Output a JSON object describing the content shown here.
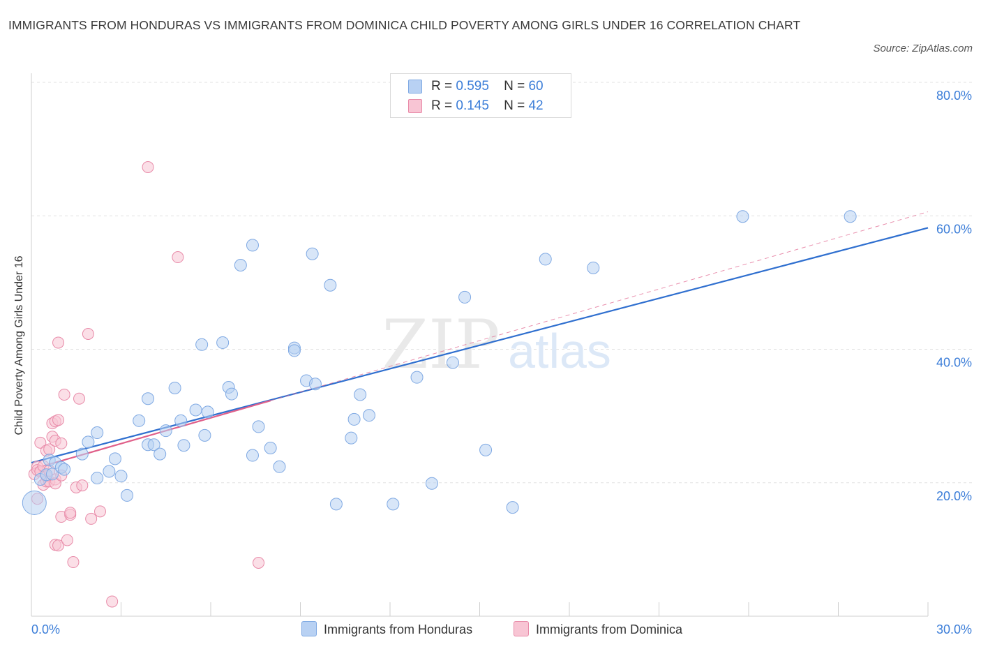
{
  "title": "IMMIGRANTS FROM HONDURAS VS IMMIGRANTS FROM DOMINICA CHILD POVERTY AMONG GIRLS UNDER 16 CORRELATION CHART",
  "source": "Source: ZipAtlas.com",
  "watermark": {
    "zip": "ZIP",
    "atlas": "atlas"
  },
  "legend": {
    "r_label": "R =",
    "n_label": "N =",
    "entries": [
      {
        "r": "0.595",
        "n": "60"
      },
      {
        "r": "0.145",
        "n": "42"
      }
    ]
  },
  "colors": {
    "honduras_fill": "#b8d1f3",
    "honduras_stroke": "#7fa9e3",
    "honduras_line": "#2f6fcf",
    "dominica_fill": "#f8c5d4",
    "dominica_stroke": "#e88aa8",
    "dominica_line": "#e0608a",
    "tick_text": "#3b7dd8",
    "grid": "#e2e2e2"
  },
  "chart_data": {
    "type": "scatter",
    "title": "IMMIGRANTS FROM HONDURAS VS IMMIGRANTS FROM DOMINICA CHILD POVERTY AMONG GIRLS UNDER 16 CORRELATION CHART",
    "xlabel": "",
    "ylabel": "Child Poverty Among Girls Under 16",
    "xlim": [
      0,
      30
    ],
    "ylim": [
      0,
      80
    ],
    "x_tick_labels": [
      "0.0%",
      "30.0%"
    ],
    "y_ticks": [
      20,
      40,
      60,
      80
    ],
    "y_tick_labels": [
      "20.0%",
      "40.0%",
      "60.0%",
      "80.0%"
    ],
    "series": [
      {
        "name": "Immigrants from Honduras",
        "points": [
          [
            0.1,
            17.0
          ],
          [
            0.3,
            20.5
          ],
          [
            0.5,
            21.2
          ],
          [
            0.6,
            23.4
          ],
          [
            0.7,
            21.3
          ],
          [
            0.8,
            23.0
          ],
          [
            1.0,
            22.3
          ],
          [
            1.1,
            22.0
          ],
          [
            1.7,
            24.3
          ],
          [
            1.9,
            26.1
          ],
          [
            2.2,
            27.5
          ],
          [
            2.2,
            20.7
          ],
          [
            2.6,
            21.7
          ],
          [
            2.8,
            23.6
          ],
          [
            3.0,
            21.0
          ],
          [
            3.2,
            18.1
          ],
          [
            3.6,
            29.3
          ],
          [
            3.9,
            25.7
          ],
          [
            3.9,
            32.6
          ],
          [
            4.1,
            25.7
          ],
          [
            4.3,
            24.3
          ],
          [
            4.5,
            27.8
          ],
          [
            4.8,
            34.2
          ],
          [
            5.0,
            29.3
          ],
          [
            5.1,
            25.6
          ],
          [
            5.5,
            30.9
          ],
          [
            5.7,
            40.7
          ],
          [
            5.8,
            27.1
          ],
          [
            5.9,
            30.6
          ],
          [
            6.4,
            41.0
          ],
          [
            6.6,
            34.3
          ],
          [
            6.7,
            33.3
          ],
          [
            7.0,
            52.6
          ],
          [
            7.4,
            55.6
          ],
          [
            7.4,
            24.1
          ],
          [
            7.6,
            28.4
          ],
          [
            8.0,
            25.2
          ],
          [
            8.3,
            22.4
          ],
          [
            8.8,
            40.2
          ],
          [
            8.8,
            39.8
          ],
          [
            9.2,
            35.3
          ],
          [
            9.4,
            54.3
          ],
          [
            9.5,
            34.8
          ],
          [
            10.0,
            49.6
          ],
          [
            10.2,
            16.8
          ],
          [
            10.7,
            26.7
          ],
          [
            10.8,
            29.5
          ],
          [
            11.0,
            33.2
          ],
          [
            11.3,
            30.1
          ],
          [
            12.1,
            16.8
          ],
          [
            12.9,
            35.8
          ],
          [
            13.4,
            19.9
          ],
          [
            14.1,
            38.0
          ],
          [
            14.5,
            47.8
          ],
          [
            15.2,
            24.9
          ],
          [
            16.1,
            16.3
          ],
          [
            17.2,
            53.5
          ],
          [
            18.8,
            52.2
          ],
          [
            23.8,
            59.9
          ],
          [
            27.4,
            59.9
          ]
        ]
      },
      {
        "name": "Immigrants from Dominica",
        "points": [
          [
            0.1,
            21.3
          ],
          [
            0.2,
            22.4
          ],
          [
            0.2,
            21.9
          ],
          [
            0.2,
            17.6
          ],
          [
            0.3,
            26.0
          ],
          [
            0.3,
            21.7
          ],
          [
            0.4,
            19.7
          ],
          [
            0.4,
            22.5
          ],
          [
            0.5,
            20.2
          ],
          [
            0.5,
            21.0
          ],
          [
            0.5,
            24.8
          ],
          [
            0.6,
            25.0
          ],
          [
            0.6,
            20.2
          ],
          [
            0.6,
            21.8
          ],
          [
            0.7,
            26.9
          ],
          [
            0.7,
            28.9
          ],
          [
            0.8,
            29.2
          ],
          [
            0.8,
            20.5
          ],
          [
            0.8,
            10.7
          ],
          [
            0.8,
            19.9
          ],
          [
            0.9,
            29.4
          ],
          [
            0.8,
            26.3
          ],
          [
            0.9,
            41.0
          ],
          [
            0.9,
            10.6
          ],
          [
            1.0,
            21.1
          ],
          [
            1.0,
            25.9
          ],
          [
            1.0,
            14.9
          ],
          [
            1.1,
            33.2
          ],
          [
            1.2,
            11.4
          ],
          [
            1.3,
            15.2
          ],
          [
            1.3,
            15.5
          ],
          [
            1.4,
            8.1
          ],
          [
            1.5,
            19.3
          ],
          [
            1.6,
            32.6
          ],
          [
            1.7,
            19.6
          ],
          [
            1.9,
            42.3
          ],
          [
            2.0,
            14.6
          ],
          [
            2.3,
            15.7
          ],
          [
            2.7,
            2.2
          ],
          [
            3.9,
            67.3
          ],
          [
            4.9,
            53.8
          ],
          [
            7.6,
            8.0
          ]
        ]
      }
    ],
    "trend_lines": [
      {
        "series": "Immigrants from Honduras",
        "from": [
          0.0,
          23.0
        ],
        "to": [
          30.0,
          58.2
        ],
        "style": "solid"
      },
      {
        "series": "Immigrants from Dominica",
        "from": [
          0.0,
          22.0
        ],
        "to": [
          8.0,
          32.3
        ],
        "style": "solid"
      },
      {
        "series": "Immigrants from Dominica",
        "from": [
          8.0,
          32.3
        ],
        "to": [
          30.0,
          60.6
        ],
        "style": "dashed"
      }
    ]
  }
}
